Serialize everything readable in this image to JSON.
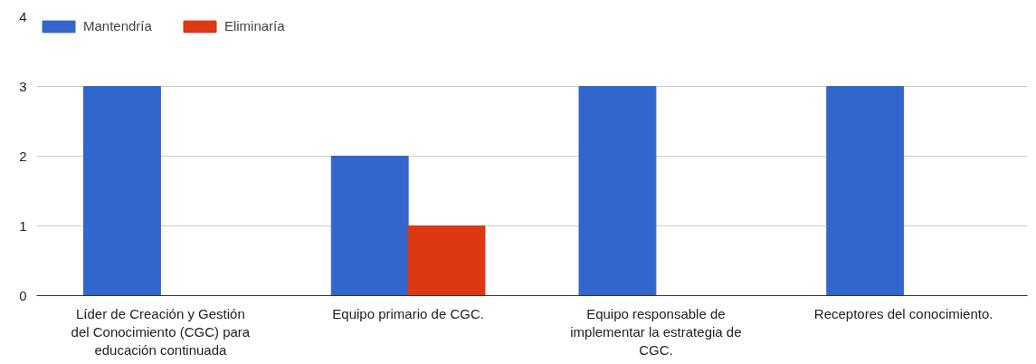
{
  "chart_data": {
    "type": "bar",
    "categories": [
      "Líder de Creación y Gestión del Conocimiento (CGC) para educación continuada",
      "Equipo primario de CGC.",
      "Equipo responsable de implementar la estrategia de CGC.",
      "Receptores del conocimiento."
    ],
    "series": [
      {
        "name": "Mantendría",
        "color": "#3366cc",
        "values": [
          3,
          2,
          3,
          3
        ]
      },
      {
        "name": "Eliminaría",
        "color": "#dc3912",
        "values": [
          0,
          1,
          0,
          0
        ]
      }
    ],
    "ylim": [
      0,
      4
    ],
    "yticks": [
      0,
      1,
      2,
      3,
      4
    ],
    "grid": "y",
    "legend": "top left"
  }
}
